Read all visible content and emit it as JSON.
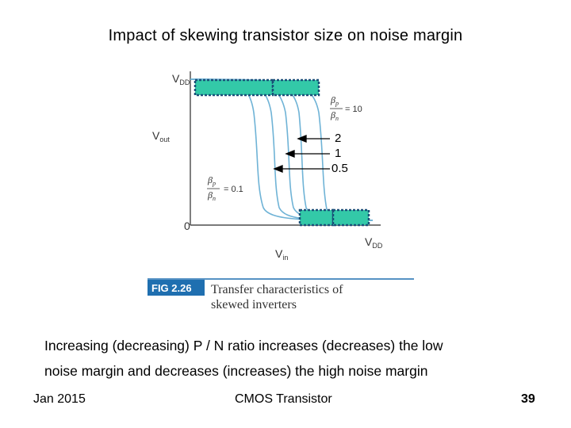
{
  "slide": {
    "title": "Impact of skewing transistor size on noise margin",
    "body_line_1": "Increasing (decreasing) P / N ratio increases (decreases) the low",
    "body_line_2": "noise margin and decreases (increases) the high noise margin"
  },
  "footer": {
    "date": "Jan 2015",
    "course": "CMOS Transistor",
    "page": "39"
  },
  "figure": {
    "vdd_v": "V",
    "vdd_sub": "DD",
    "vout_v": "V",
    "vout_sub": "out",
    "vin_v": "V",
    "vin_sub": "in",
    "origin_label": "0",
    "xaxis_vdd_v": "V",
    "xaxis_vdd_sub": "DD",
    "ratio_high_label": "β",
    "ratio_high_num_sub": "p",
    "ratio_high_den_sub": "n",
    "ratio_high_value": "= 10",
    "ratio_low_label": "β",
    "ratio_low_num_sub": "p",
    "ratio_low_den_sub": "n",
    "ratio_low_value": "= 0.1",
    "arrow_labels": [
      "2",
      "1",
      "0.5"
    ],
    "fig_tag": "FIG 2.26",
    "caption_line_1": "Transfer characteristics of",
    "caption_line_2": "skewed inverters",
    "colors": {
      "curve": "#6fb3d6",
      "box_fill": "#33c9a8",
      "box_border": "#1a4f78",
      "fig_tag_bg": "#1f6fb0",
      "axis": "#2a2a2a"
    }
  }
}
